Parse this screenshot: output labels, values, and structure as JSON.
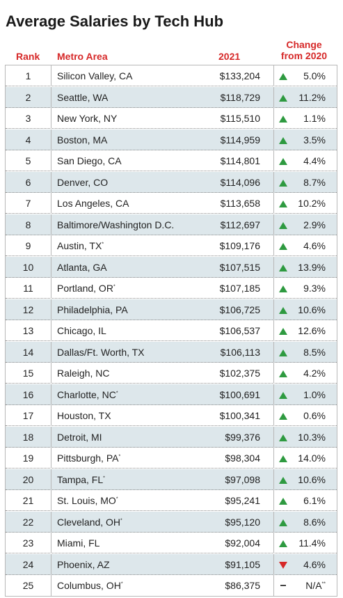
{
  "title": "Average Salaries by Tech Hub",
  "chart_data": {
    "type": "table",
    "title": "Average Salaries by Tech Hub",
    "columns": [
      "Rank",
      "Metro Area",
      "2021",
      "Change from 2020"
    ],
    "rows": [
      {
        "rank": "1",
        "metro": "Silicon Valley, CA",
        "note": "",
        "salary": "$133,204",
        "direction": "up",
        "change": "5.0%",
        "change_note": ""
      },
      {
        "rank": "2",
        "metro": "Seattle, WA",
        "note": "",
        "salary": "$118,729",
        "direction": "up",
        "change": "11.2%",
        "change_note": ""
      },
      {
        "rank": "3",
        "metro": "New York, NY",
        "note": "",
        "salary": "$115,510",
        "direction": "up",
        "change": "1.1%",
        "change_note": ""
      },
      {
        "rank": "4",
        "metro": "Boston, MA",
        "note": "",
        "salary": "$114,959",
        "direction": "up",
        "change": "3.5%",
        "change_note": ""
      },
      {
        "rank": "5",
        "metro": "San Diego, CA",
        "note": "",
        "salary": "$114,801",
        "direction": "up",
        "change": "4.4%",
        "change_note": ""
      },
      {
        "rank": "6",
        "metro": "Denver, CO",
        "note": "",
        "salary": "$114,096",
        "direction": "up",
        "change": "8.7%",
        "change_note": ""
      },
      {
        "rank": "7",
        "metro": "Los Angeles, CA",
        "note": "",
        "salary": "$113,658",
        "direction": "up",
        "change": "10.2%",
        "change_note": ""
      },
      {
        "rank": "8",
        "metro": "Baltimore/Washington D.C.",
        "note": "",
        "salary": "$112,697",
        "direction": "up",
        "change": "2.9%",
        "change_note": ""
      },
      {
        "rank": "9",
        "metro": "Austin, TX",
        "note": "*",
        "salary": "$109,176",
        "direction": "up",
        "change": "4.6%",
        "change_note": ""
      },
      {
        "rank": "10",
        "metro": "Atlanta, GA",
        "note": "",
        "salary": "$107,515",
        "direction": "up",
        "change": "13.9%",
        "change_note": ""
      },
      {
        "rank": "11",
        "metro": "Portland, OR",
        "note": "*",
        "salary": "$107,185",
        "direction": "up",
        "change": "9.3%",
        "change_note": ""
      },
      {
        "rank": "12",
        "metro": "Philadelphia, PA",
        "note": "",
        "salary": "$106,725",
        "direction": "up",
        "change": "10.6%",
        "change_note": ""
      },
      {
        "rank": "13",
        "metro": "Chicago, IL",
        "note": "",
        "salary": "$106,537",
        "direction": "up",
        "change": "12.6%",
        "change_note": ""
      },
      {
        "rank": "14",
        "metro": "Dallas/Ft. Worth, TX",
        "note": "",
        "salary": "$106,113",
        "direction": "up",
        "change": "8.5%",
        "change_note": ""
      },
      {
        "rank": "15",
        "metro": "Raleigh, NC",
        "note": "",
        "salary": "$102,375",
        "direction": "up",
        "change": "4.2%",
        "change_note": ""
      },
      {
        "rank": "16",
        "metro": "Charlotte, NC",
        "note": "*",
        "salary": "$100,691",
        "direction": "up",
        "change": "1.0%",
        "change_note": ""
      },
      {
        "rank": "17",
        "metro": "Houston, TX",
        "note": "",
        "salary": "$100,341",
        "direction": "up",
        "change": "0.6%",
        "change_note": ""
      },
      {
        "rank": "18",
        "metro": "Detroit, MI",
        "note": "",
        "salary": "$99,376",
        "direction": "up",
        "change": "10.3%",
        "change_note": ""
      },
      {
        "rank": "19",
        "metro": "Pittsburgh, PA",
        "note": "*",
        "salary": "$98,304",
        "direction": "up",
        "change": "14.0%",
        "change_note": ""
      },
      {
        "rank": "20",
        "metro": "Tampa, FL",
        "note": "*",
        "salary": "$97,098",
        "direction": "up",
        "change": "10.6%",
        "change_note": ""
      },
      {
        "rank": "21",
        "metro": "St. Louis, MO",
        "note": "*",
        "salary": "$95,241",
        "direction": "up",
        "change": "6.1%",
        "change_note": ""
      },
      {
        "rank": "22",
        "metro": "Cleveland, OH",
        "note": "*",
        "salary": "$95,120",
        "direction": "up",
        "change": "8.6%",
        "change_note": ""
      },
      {
        "rank": "23",
        "metro": "Miami, FL",
        "note": "",
        "salary": "$92,004",
        "direction": "up",
        "change": "11.4%",
        "change_note": ""
      },
      {
        "rank": "24",
        "metro": "Phoenix, AZ",
        "note": "",
        "salary": "$91,105",
        "direction": "down",
        "change": "4.6%",
        "change_note": ""
      },
      {
        "rank": "25",
        "metro": "Columbus, OH",
        "note": "*",
        "salary": "$86,375",
        "direction": "none",
        "change": "N/A",
        "change_note": "**"
      }
    ]
  },
  "colors": {
    "accent": "#d62828",
    "up": "#2e9a40",
    "down": "#d62828",
    "row_alt": "#dde7eb"
  }
}
